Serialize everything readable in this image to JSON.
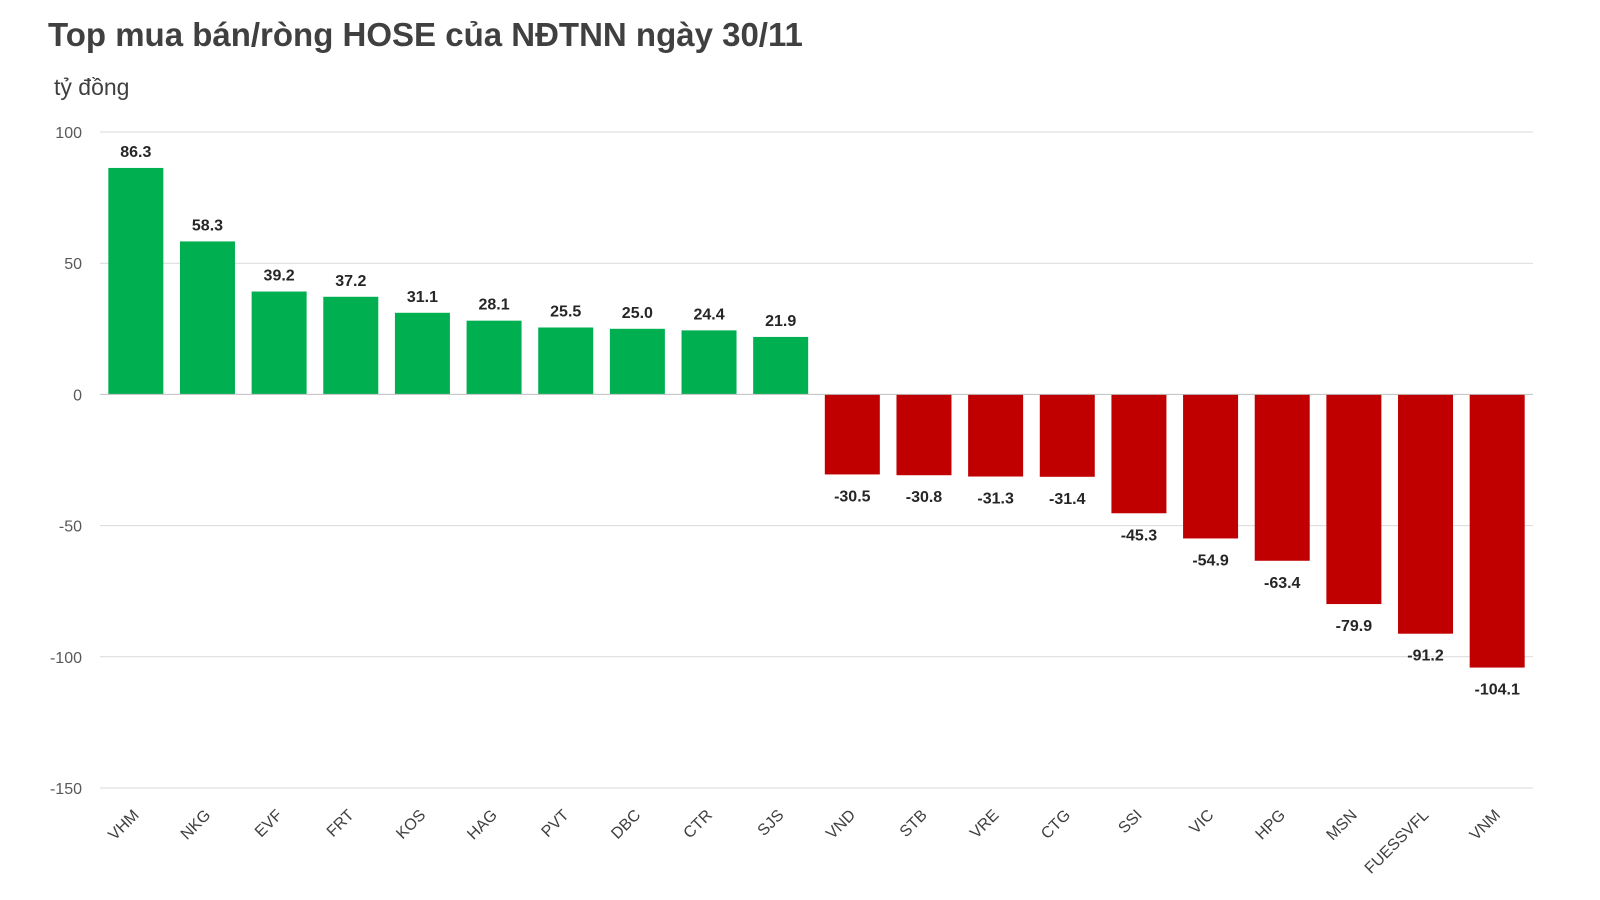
{
  "chart_data": {
    "type": "bar",
    "title": "Top mua bán/ròng HOSE của NĐTNN ngày 30/11",
    "ylabel": "tỷ đồng",
    "xlabel": "",
    "categories": [
      "VHM",
      "NKG",
      "EVF",
      "FRT",
      "KOS",
      "HAG",
      "PVT",
      "DBC",
      "CTR",
      "SJS",
      "VND",
      "STB",
      "VRE",
      "CTG",
      "SSI",
      "VIC",
      "HPG",
      "MSN",
      "FUESSVFL",
      "VNM"
    ],
    "values": [
      86.3,
      58.3,
      39.2,
      37.2,
      31.1,
      28.1,
      25.5,
      25.0,
      24.4,
      21.9,
      -30.5,
      -30.8,
      -31.3,
      -31.4,
      -45.3,
      -54.9,
      -63.4,
      -79.9,
      -91.2,
      -104.1
    ],
    "value_labels": [
      "86.3",
      "58.3",
      "39.2",
      "37.2",
      "31.1",
      "28.1",
      "25.5",
      "25.0",
      "24.4",
      "21.9",
      "-30.5",
      "-30.8",
      "-31.3",
      "-31.4",
      "-45.3",
      "-54.9",
      "-63.4",
      "-79.9",
      "-91.2",
      "-104.1"
    ],
    "ylim": [
      -150,
      100
    ],
    "yticks": [
      100,
      50,
      0,
      -50,
      -100,
      -150
    ],
    "ytick_labels": [
      "100",
      "50",
      "0",
      "-50",
      "-100",
      "-150"
    ],
    "grid": true,
    "legend": "none",
    "colors": {
      "positive": "#00b050",
      "negative": "#c00000",
      "grid": "#d9d9d9",
      "axis": "#bfbfbf"
    }
  }
}
